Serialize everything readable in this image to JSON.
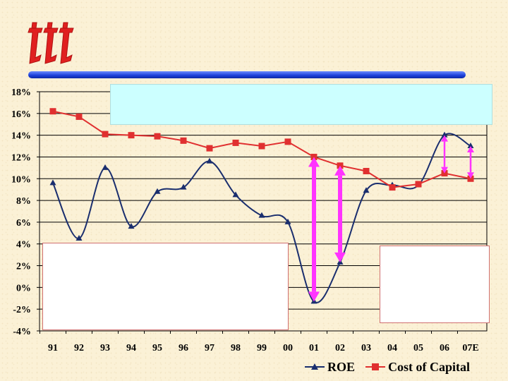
{
  "logo": {
    "icon": "ttt-logo-icon",
    "color": "#e02020"
  },
  "chart_data": {
    "type": "line",
    "categories": [
      "91",
      "92",
      "93",
      "94",
      "95",
      "96",
      "97",
      "98",
      "99",
      "00",
      "01",
      "02",
      "03",
      "04",
      "05",
      "06",
      "07E"
    ],
    "ylim": [
      -4,
      18
    ],
    "yticks": [
      -4,
      -2,
      0,
      2,
      4,
      6,
      8,
      10,
      12,
      14,
      16,
      18
    ],
    "ytick_labels": [
      "-4%",
      "-2%",
      "0%",
      "2%",
      "4%",
      "6%",
      "8%",
      "10%",
      "12%",
      "14%",
      "16%",
      "18%"
    ],
    "grid": true,
    "legend_position": "bottom-right",
    "series": [
      {
        "name": "ROE",
        "color": "#1a2e6e",
        "marker": "triangle",
        "values": [
          9.6,
          4.5,
          11.0,
          5.6,
          8.8,
          9.2,
          11.6,
          8.5,
          6.6,
          6.0,
          -1.3,
          2.3,
          8.9,
          9.4,
          9.4,
          14.0,
          13.0
        ]
      },
      {
        "name": "Cost of Capital",
        "color": "#e03030",
        "marker": "square",
        "values": [
          16.2,
          15.7,
          14.1,
          14.0,
          13.9,
          13.5,
          12.8,
          13.3,
          13.0,
          13.4,
          12.0,
          11.2,
          10.7,
          9.2,
          9.5,
          10.5,
          10.0
        ]
      }
    ],
    "gap_arrows": [
      {
        "category": "01",
        "color": "#ff33ff",
        "width": "thick"
      },
      {
        "category": "02",
        "color": "#ff33ff",
        "width": "thick"
      },
      {
        "category": "06",
        "color": "#ff33ff",
        "width": "thin"
      },
      {
        "category": "07E",
        "color": "#ff33ff",
        "width": "thin"
      }
    ]
  }
}
